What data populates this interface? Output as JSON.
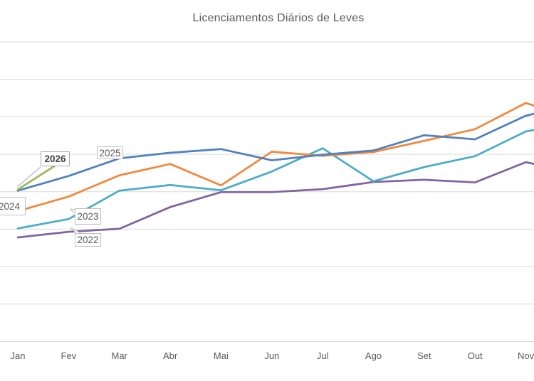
{
  "title": "Licenciamentos Diários de Leves",
  "chart_data": {
    "type": "line",
    "title": "Licenciamentos Diários de Leves",
    "categories": [
      "Jan",
      "Fev",
      "Mar",
      "Abr",
      "Mai",
      "Jun",
      "Jul",
      "Ago",
      "Set",
      "Out",
      "Nov"
    ],
    "xlabel": "",
    "ylabel": "",
    "y_axis_labels_visible": false,
    "value_unit": "horizontal gridline steps above baseline (y-axis tick labels are cropped out of the frame)",
    "ylim": [
      0,
      8
    ],
    "grid": "horizontal",
    "legend_position": "inline year callout labels",
    "series": [
      {
        "name": "2022",
        "color": "#8064A2",
        "points": [
          [
            0,
            2.78
          ],
          [
            1,
            2.93
          ],
          [
            2,
            3.01
          ],
          [
            3,
            3.59
          ],
          [
            4,
            3.99
          ],
          [
            5,
            3.99
          ],
          [
            6,
            4.07
          ],
          [
            7,
            4.26
          ],
          [
            8,
            4.32
          ],
          [
            9,
            4.25
          ],
          [
            10,
            4.79
          ],
          [
            10.16,
            4.74
          ]
        ]
      },
      {
        "name": "2023",
        "color": "#4BACC6",
        "points": [
          [
            0,
            3.02
          ],
          [
            1,
            3.27
          ],
          [
            2,
            4.03
          ],
          [
            3,
            4.18
          ],
          [
            4,
            4.04
          ],
          [
            5,
            4.54
          ],
          [
            6,
            5.16
          ],
          [
            7,
            4.28
          ],
          [
            8,
            4.66
          ],
          [
            9,
            4.95
          ],
          [
            10,
            5.61
          ],
          [
            10.16,
            5.65
          ]
        ]
      },
      {
        "name": "2024",
        "color": "#F0883E",
        "points": [
          [
            0,
            3.48
          ],
          [
            1,
            3.87
          ],
          [
            2,
            4.44
          ],
          [
            3,
            4.74
          ],
          [
            4,
            4.17
          ],
          [
            5,
            5.07
          ],
          [
            6,
            4.96
          ],
          [
            7,
            5.06
          ],
          [
            8,
            5.36
          ],
          [
            9,
            5.67
          ],
          [
            10,
            6.37
          ],
          [
            10.16,
            6.3
          ]
        ]
      },
      {
        "name": "2025",
        "color": "#4F81BD",
        "points": [
          [
            0,
            4.03
          ],
          [
            1,
            4.42
          ],
          [
            2,
            4.89
          ],
          [
            3,
            5.04
          ],
          [
            4,
            5.14
          ],
          [
            5,
            4.84
          ],
          [
            6,
            4.99
          ],
          [
            7,
            5.1
          ],
          [
            8,
            5.51
          ],
          [
            9,
            5.4
          ],
          [
            10,
            6.03
          ],
          [
            10.16,
            6.08
          ]
        ]
      },
      {
        "name": "2026",
        "color": "#9BBB59",
        "points": [
          [
            0,
            4.06
          ],
          [
            0.75,
            4.71
          ]
        ]
      }
    ],
    "annotations": [
      {
        "text": "2026",
        "bold": true
      },
      {
        "text": "2025",
        "bold": false
      },
      {
        "text": "2024",
        "bold": false
      },
      {
        "text": "2023",
        "bold": false
      },
      {
        "text": "2022",
        "bold": false
      }
    ]
  },
  "colors": {
    "gridline": "#D9D9D9",
    "axis_text": "#595959",
    "title_text": "#595959",
    "callout_border": "#BFBFBF",
    "leader_line": "#BFBFBF",
    "background": "#FFFFFF"
  }
}
